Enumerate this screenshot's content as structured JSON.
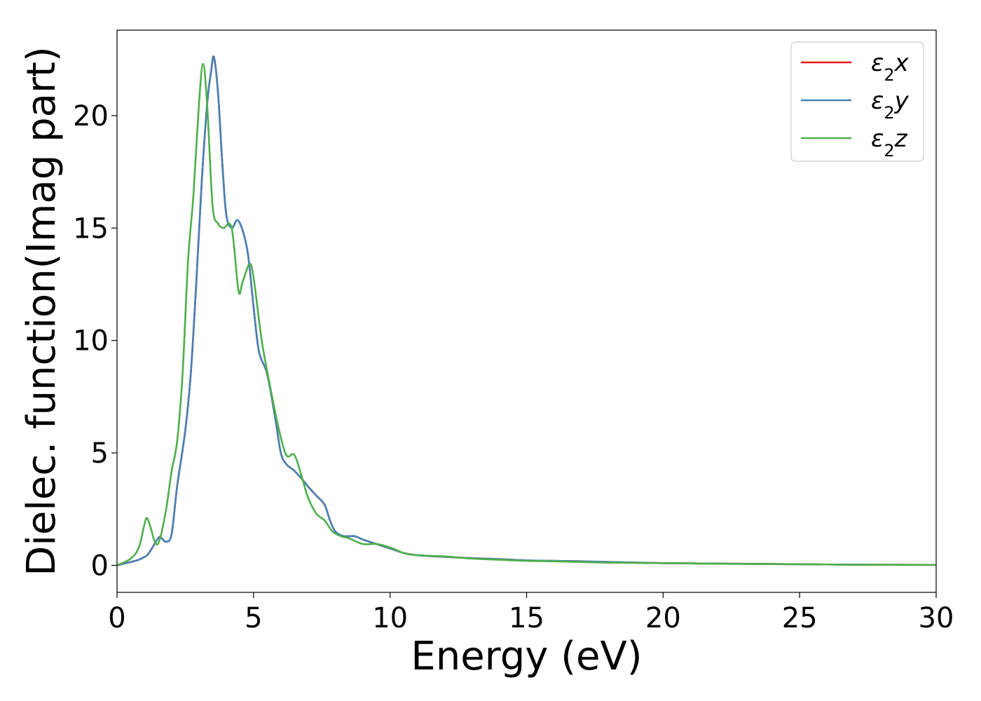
{
  "chart_data": {
    "type": "line",
    "xlabel": "Energy (eV)",
    "ylabel": "Dielec. function(Imag part)",
    "xlim": [
      0,
      30
    ],
    "ylim": [
      -1.2,
      23.8
    ],
    "x_ticks": [
      "0",
      "5",
      "10",
      "15",
      "20",
      "25",
      "30"
    ],
    "y_ticks": [
      "0",
      "5",
      "10",
      "15",
      "20"
    ],
    "grid": false,
    "legend_position": "top-right",
    "series": [
      {
        "name": "ε2x",
        "legend_main": "ε",
        "legend_sub": "2",
        "legend_var": "x",
        "color": "#e41a1c",
        "x": [
          0,
          0.5,
          0.8,
          1.1,
          1.3,
          1.5,
          1.6,
          1.8,
          2.0,
          2.2,
          2.5,
          2.7,
          2.9,
          3.1,
          3.3,
          3.45,
          3.55,
          3.7,
          3.85,
          4.0,
          4.2,
          4.4,
          4.6,
          4.8,
          5.0,
          5.2,
          5.5,
          5.8,
          6.0,
          6.2,
          6.5,
          6.8,
          7.0,
          7.3,
          7.6,
          7.8,
          8.0,
          8.3,
          8.7,
          9.0,
          9.5,
          10.0,
          10.5,
          11.0,
          12.0,
          13.0,
          13.5,
          14.0,
          15.0,
          16.0,
          17.0,
          18.0,
          20.0,
          22.0,
          25.0,
          27.0,
          30.0
        ],
        "y": [
          0,
          0.15,
          0.25,
          0.45,
          0.8,
          1.2,
          1.25,
          1.05,
          1.4,
          3.5,
          6.0,
          8.5,
          12.5,
          17.0,
          20.5,
          22.0,
          22.6,
          21.0,
          18.0,
          15.6,
          15.0,
          15.35,
          14.9,
          13.8,
          11.5,
          9.5,
          8.5,
          6.5,
          5.0,
          4.5,
          4.2,
          3.8,
          3.5,
          3.1,
          2.7,
          2.0,
          1.5,
          1.3,
          1.3,
          1.15,
          0.95,
          0.75,
          0.55,
          0.45,
          0.38,
          0.32,
          0.3,
          0.28,
          0.22,
          0.2,
          0.18,
          0.15,
          0.1,
          0.08,
          0.05,
          0.03,
          0.02
        ]
      },
      {
        "name": "ε2y",
        "legend_main": "ε",
        "legend_sub": "2",
        "legend_var": "y",
        "color": "#4682b4",
        "x": [
          0,
          0.5,
          0.8,
          1.1,
          1.3,
          1.5,
          1.6,
          1.8,
          2.0,
          2.2,
          2.5,
          2.7,
          2.9,
          3.1,
          3.3,
          3.45,
          3.55,
          3.7,
          3.85,
          4.0,
          4.2,
          4.4,
          4.6,
          4.8,
          5.0,
          5.2,
          5.5,
          5.8,
          6.0,
          6.2,
          6.5,
          6.8,
          7.0,
          7.3,
          7.6,
          7.8,
          8.0,
          8.3,
          8.7,
          9.0,
          9.5,
          10.0,
          10.5,
          11.0,
          12.0,
          13.0,
          13.5,
          14.0,
          15.0,
          16.0,
          17.0,
          18.0,
          20.0,
          22.0,
          25.0,
          27.0,
          30.0
        ],
        "y": [
          0,
          0.15,
          0.25,
          0.45,
          0.8,
          1.2,
          1.25,
          1.05,
          1.4,
          3.5,
          6.0,
          8.5,
          12.5,
          17.0,
          20.5,
          22.0,
          22.6,
          21.0,
          18.0,
          15.6,
          15.0,
          15.35,
          14.9,
          13.8,
          11.5,
          9.5,
          8.5,
          6.5,
          5.0,
          4.5,
          4.2,
          3.8,
          3.5,
          3.1,
          2.7,
          2.0,
          1.5,
          1.3,
          1.3,
          1.15,
          0.95,
          0.75,
          0.55,
          0.45,
          0.38,
          0.32,
          0.3,
          0.28,
          0.22,
          0.2,
          0.18,
          0.15,
          0.1,
          0.08,
          0.05,
          0.03,
          0.02
        ]
      },
      {
        "name": "ε2z",
        "legend_main": "ε",
        "legend_sub": "2",
        "legend_var": "z",
        "color": "#4daf4a",
        "x": [
          0,
          0.5,
          0.8,
          1.0,
          1.1,
          1.25,
          1.4,
          1.55,
          1.8,
          2.0,
          2.2,
          2.4,
          2.6,
          2.8,
          3.0,
          3.15,
          3.3,
          3.5,
          3.7,
          3.9,
          4.2,
          4.45,
          4.6,
          4.85,
          5.0,
          5.3,
          5.6,
          5.9,
          6.2,
          6.5,
          6.8,
          7.0,
          7.3,
          7.6,
          7.9,
          8.2,
          8.5,
          9.0,
          9.5,
          10.0,
          10.5,
          11.0,
          12.0,
          13.0,
          14.0,
          15.0,
          16.0,
          17.0,
          18.0,
          20.0,
          22.0,
          25.0,
          27.0,
          30.0
        ],
        "y": [
          0,
          0.3,
          0.8,
          1.8,
          2.1,
          1.6,
          1.0,
          1.1,
          2.5,
          4.2,
          5.5,
          8.5,
          13.5,
          16.5,
          20.5,
          22.3,
          20.5,
          16.0,
          15.2,
          15.0,
          15.0,
          12.2,
          12.6,
          13.4,
          12.8,
          10.0,
          8.0,
          6.2,
          4.9,
          4.9,
          3.8,
          3.0,
          2.3,
          2.0,
          1.5,
          1.3,
          1.2,
          0.95,
          0.95,
          0.8,
          0.55,
          0.45,
          0.4,
          0.3,
          0.25,
          0.2,
          0.18,
          0.15,
          0.12,
          0.1,
          0.07,
          0.05,
          0.03,
          0.02
        ]
      }
    ]
  }
}
